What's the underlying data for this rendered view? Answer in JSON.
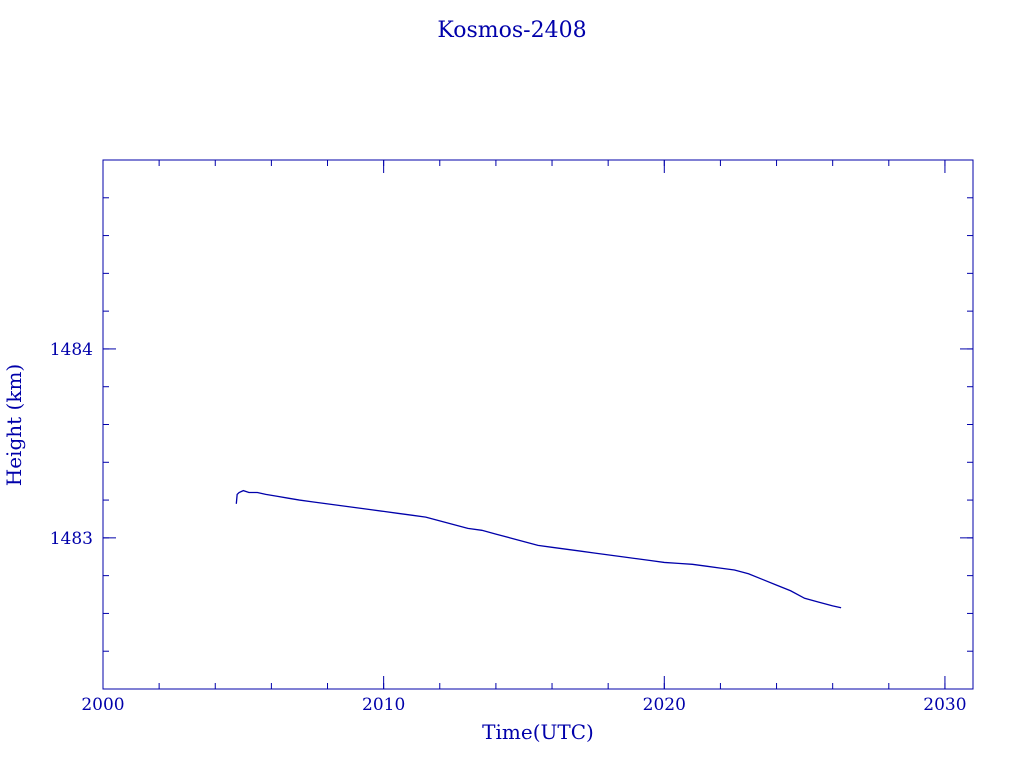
{
  "chart_data": {
    "type": "line",
    "title": "Kosmos-2408",
    "xlabel": "Time(UTC)",
    "ylabel": "Height (km)",
    "xlim": [
      2000,
      2031
    ],
    "ylim": [
      1482.2,
      1485.0
    ],
    "x_ticks": [
      2000,
      2010,
      2020,
      2030
    ],
    "y_ticks": [
      1483,
      1484
    ],
    "x_minor_step": 2,
    "y_minor_step": 0.2,
    "grid": false,
    "color": "#0000aa",
    "series": [
      {
        "x": [
          2004.75,
          2004.78,
          2004.85,
          2005.0,
          2005.2,
          2005.5,
          2005.8,
          2006.2,
          2006.6,
          2007.0,
          2007.5,
          2008.0,
          2008.5,
          2009.0,
          2009.5,
          2010.0,
          2010.5,
          2011.0,
          2011.5,
          2012.0,
          2012.5,
          2013.0,
          2013.5,
          2014.0,
          2014.5,
          2015.0,
          2015.5,
          2016.0,
          2016.5,
          2017.0,
          2017.5,
          2018.0,
          2018.5,
          2019.0,
          2019.5,
          2020.0,
          2020.5,
          2021.0,
          2021.5,
          2022.0,
          2022.5,
          2023.0,
          2023.5,
          2024.0,
          2024.5,
          2025.0,
          2025.5,
          2026.0,
          2026.3
        ],
        "y": [
          1483.18,
          1483.23,
          1483.24,
          1483.25,
          1483.24,
          1483.24,
          1483.23,
          1483.22,
          1483.21,
          1483.2,
          1483.19,
          1483.18,
          1483.17,
          1483.16,
          1483.15,
          1483.14,
          1483.13,
          1483.12,
          1483.11,
          1483.09,
          1483.07,
          1483.05,
          1483.04,
          1483.02,
          1483.0,
          1482.98,
          1482.96,
          1482.95,
          1482.94,
          1482.93,
          1482.92,
          1482.91,
          1482.9,
          1482.89,
          1482.88,
          1482.87,
          1482.865,
          1482.86,
          1482.85,
          1482.84,
          1482.83,
          1482.81,
          1482.78,
          1482.75,
          1482.72,
          1482.68,
          1482.66,
          1482.64,
          1482.63
        ]
      }
    ]
  }
}
